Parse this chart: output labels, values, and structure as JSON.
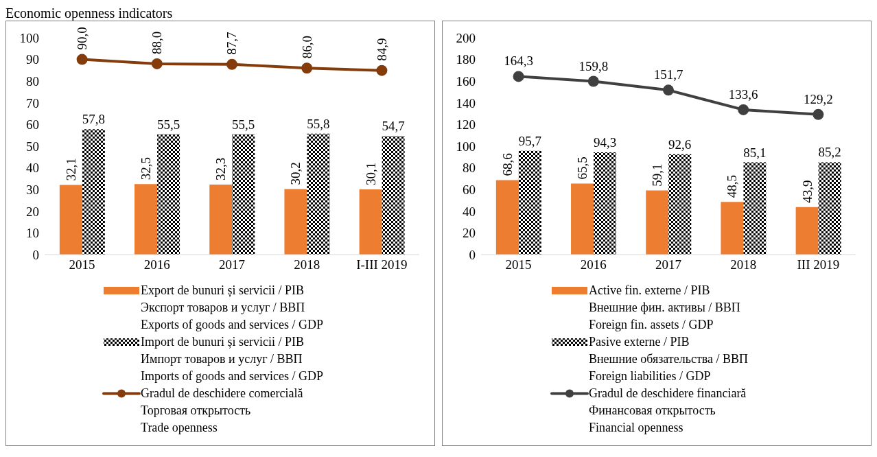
{
  "chart_data": [
    {
      "type": "bar",
      "title": "Economic openness indicators",
      "categories": [
        "2015",
        "2016",
        "2017",
        "2018",
        "I-III 2019"
      ],
      "ylim": [
        0,
        100
      ],
      "yticks": [
        0,
        10,
        20,
        30,
        40,
        50,
        60,
        70,
        80,
        90,
        100
      ],
      "grid": false,
      "legend": "bottom",
      "marker": "circle",
      "series": [
        {
          "name": "Export de bunuri și servicii / PIB\nЭкспорт товаров и услуг / ВВП\nExports of goods and services / GDP",
          "color": "#ed7d31",
          "values": [
            32.1,
            32.5,
            32.3,
            30.2,
            30.1
          ],
          "value_labels": [
            "32,1",
            "32,5",
            "32,3",
            "30,2",
            "30,1"
          ]
        },
        {
          "name": "Import de bunuri și servicii / PIB\nИмпорт товаров и услуг / ВВП\nImports of goods and services / GDP",
          "color": "#000000",
          "values": [
            57.8,
            55.5,
            55.5,
            55.8,
            54.7
          ],
          "value_labels": [
            "57,8",
            "55,5",
            "55,5",
            "55,8",
            "54,7"
          ]
        },
        {
          "name": "Gradul de deschidere comercială\nТорговая открытость\nTrade openness",
          "type": "line",
          "color": "#843c0c",
          "values": [
            90.0,
            88.0,
            87.7,
            86.0,
            84.9
          ],
          "value_labels": [
            "90,0",
            "88,0",
            "87,7",
            "86,0",
            "84,9"
          ]
        }
      ]
    },
    {
      "type": "bar",
      "categories": [
        "2015",
        "2016",
        "2017",
        "2018",
        "III 2019"
      ],
      "ylim": [
        0,
        200
      ],
      "yticks": [
        0,
        20,
        40,
        60,
        80,
        100,
        120,
        140,
        160,
        180,
        200
      ],
      "grid": false,
      "legend": "bottom",
      "marker": "circle",
      "series": [
        {
          "name": "Active fin. externe / PIB\nВнешние фин. активы / ВВП\nForeign fin. assets / GDP",
          "color": "#ed7d31",
          "values": [
            68.6,
            65.5,
            59.1,
            48.5,
            43.9
          ],
          "value_labels": [
            "68,6",
            "65,5",
            "59,1",
            "48,5",
            "43,9"
          ]
        },
        {
          "name": "Pasive externe / PIB\nВнешние обязательства / ВВП\nForeign liabilities / GDP",
          "color": "#000000",
          "values": [
            95.7,
            94.3,
            92.6,
            85.1,
            85.2
          ],
          "value_labels": [
            "95,7",
            "94,3",
            "92,6",
            "85,1",
            "85,2"
          ]
        },
        {
          "name": "Gradul de deschidere financiară\nФинансовая открытость\nFinancial openness",
          "type": "line",
          "color": "#404040",
          "values": [
            164.3,
            159.8,
            151.7,
            133.6,
            129.2
          ],
          "value_labels": [
            "164,3",
            "159,8",
            "151,7",
            "133,6",
            "129,2"
          ]
        }
      ]
    }
  ]
}
